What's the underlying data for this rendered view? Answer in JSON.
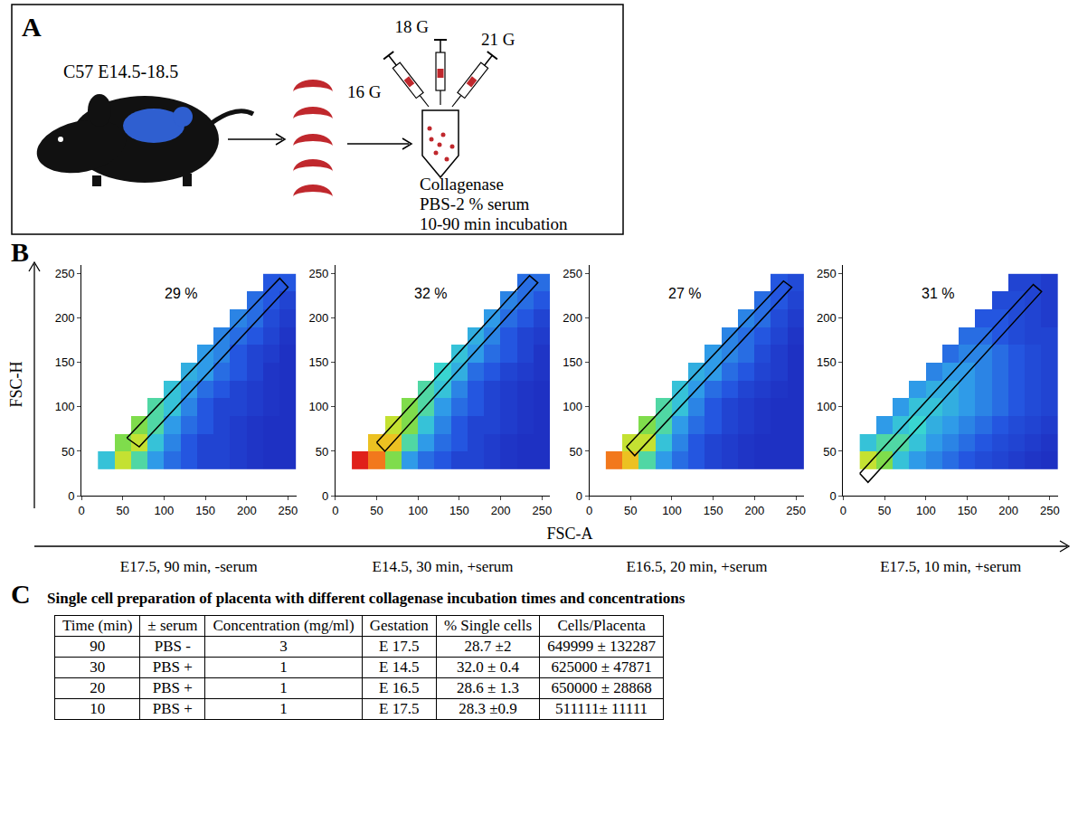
{
  "panel_a": {
    "letter": "A",
    "strain_stage": "C57 E14.5-18.5",
    "needles": {
      "left": "16 G",
      "middle": "18 G",
      "right": "21 G"
    },
    "reagents": [
      "Collagenase",
      "PBS-2 % serum",
      "10-90 min incubation"
    ]
  },
  "panel_b": {
    "letter": "B",
    "y_label": "FSC-H",
    "x_label": "FSC-A"
  },
  "chart_data": [
    {
      "type": "heatmap",
      "subtitle": "E17.5, 90 min, -serum",
      "x": [
        30,
        50,
        70,
        90,
        110,
        130,
        150,
        170,
        190,
        210,
        230,
        250
      ],
      "y": [
        40,
        60,
        80,
        100,
        120,
        140,
        160,
        180,
        200,
        220,
        240
      ],
      "z": [
        [
          4,
          7,
          5,
          3,
          2,
          1.5,
          1,
          1,
          0.8,
          0.6,
          0.5,
          0.5
        ],
        [
          null,
          6,
          7,
          4,
          2.5,
          1.5,
          1,
          1,
          0.8,
          0.6,
          0.5,
          0.5
        ],
        [
          null,
          null,
          6,
          5,
          3,
          2,
          1.5,
          1,
          0.8,
          0.6,
          0.5,
          0.5
        ],
        [
          null,
          null,
          null,
          5,
          4,
          2.5,
          1.5,
          1,
          1,
          0.8,
          0.6,
          0.5
        ],
        [
          null,
          null,
          null,
          null,
          4,
          3,
          2,
          1.5,
          1,
          0.8,
          0.6,
          0.5
        ],
        [
          null,
          null,
          null,
          null,
          null,
          3.5,
          3,
          2,
          1.5,
          1,
          0.6,
          0.5
        ],
        [
          null,
          null,
          null,
          null,
          null,
          null,
          3,
          2.5,
          1.5,
          1,
          0.8,
          0.5
        ],
        [
          null,
          null,
          null,
          null,
          null,
          null,
          null,
          2.5,
          2,
          1.5,
          1,
          0.6
        ],
        [
          null,
          null,
          null,
          null,
          null,
          null,
          null,
          null,
          2.5,
          2,
          1.2,
          0.8
        ],
        [
          null,
          null,
          null,
          null,
          null,
          null,
          null,
          null,
          null,
          2,
          1.5,
          1
        ],
        [
          null,
          null,
          null,
          null,
          null,
          null,
          null,
          null,
          null,
          null,
          1.5,
          1.5
        ]
      ],
      "zlim": [
        0,
        10
      ],
      "xlim": [
        0,
        260
      ],
      "ylim": [
        0,
        260
      ],
      "xticks": [
        0,
        50,
        100,
        150,
        200,
        250
      ],
      "yticks": [
        0,
        50,
        100,
        150,
        200,
        250
      ],
      "gate": [
        [
          55,
          65
        ],
        [
          70,
          55
        ],
        [
          250,
          235
        ],
        [
          240,
          245
        ]
      ],
      "gate_label": "29 %",
      "gate_label_at": [
        120,
        228
      ]
    },
    {
      "type": "heatmap",
      "subtitle": "E14.5, 30 min, +serum",
      "x": [
        30,
        50,
        70,
        90,
        110,
        130,
        150,
        170,
        190,
        210,
        230,
        250
      ],
      "y": [
        40,
        60,
        80,
        100,
        120,
        140,
        160,
        180,
        200,
        220,
        240
      ],
      "z": [
        [
          10,
          9,
          6,
          3,
          2,
          1.5,
          1,
          1,
          0.8,
          0.6,
          0.5,
          0.5
        ],
        [
          null,
          8,
          8,
          5,
          3,
          2,
          1.5,
          1,
          0.8,
          0.6,
          0.5,
          0.5
        ],
        [
          null,
          null,
          7,
          6,
          4,
          2.5,
          1.5,
          1,
          1,
          0.8,
          0.6,
          0.5
        ],
        [
          null,
          null,
          null,
          6,
          5,
          3,
          2,
          1.5,
          1,
          0.8,
          0.6,
          0.5
        ],
        [
          null,
          null,
          null,
          null,
          5,
          4,
          2.5,
          1.5,
          1,
          0.8,
          0.6,
          0.5
        ],
        [
          null,
          null,
          null,
          null,
          null,
          4.5,
          3.5,
          2,
          1.5,
          1,
          0.8,
          0.6
        ],
        [
          null,
          null,
          null,
          null,
          null,
          null,
          4,
          3,
          2,
          1.5,
          1,
          0.6
        ],
        [
          null,
          null,
          null,
          null,
          null,
          null,
          null,
          3.5,
          2.5,
          1.5,
          1,
          0.8
        ],
        [
          null,
          null,
          null,
          null,
          null,
          null,
          null,
          null,
          3,
          2,
          1.5,
          1
        ],
        [
          null,
          null,
          null,
          null,
          null,
          null,
          null,
          null,
          null,
          2.5,
          2,
          1.5
        ],
        [
          null,
          null,
          null,
          null,
          null,
          null,
          null,
          null,
          null,
          null,
          2,
          2
        ]
      ],
      "zlim": [
        0,
        10
      ],
      "xlim": [
        0,
        260
      ],
      "ylim": [
        0,
        260
      ],
      "xticks": [
        0,
        50,
        100,
        150,
        200,
        250
      ],
      "yticks": [
        0,
        50,
        100,
        150,
        200,
        250
      ],
      "gate": [
        [
          50,
          60
        ],
        [
          60,
          50
        ],
        [
          245,
          240
        ],
        [
          235,
          248
        ]
      ],
      "gate_label": "32 %",
      "gate_label_at": [
        115,
        228
      ]
    },
    {
      "type": "heatmap",
      "subtitle": "E16.5, 20 min, +serum",
      "x": [
        30,
        50,
        70,
        90,
        110,
        130,
        150,
        170,
        190,
        210,
        230,
        250
      ],
      "y": [
        40,
        60,
        80,
        100,
        120,
        140,
        160,
        180,
        200,
        220,
        240
      ],
      "z": [
        [
          9,
          8,
          5,
          3,
          2,
          1.5,
          1,
          0.8,
          0.6,
          0.5,
          0.5,
          0.5
        ],
        [
          null,
          7,
          7,
          4,
          2.5,
          1.5,
          1,
          0.8,
          0.6,
          0.5,
          0.5,
          0.5
        ],
        [
          null,
          null,
          6,
          5,
          3,
          2,
          1.5,
          1,
          0.8,
          0.6,
          0.5,
          0.5
        ],
        [
          null,
          null,
          null,
          5,
          4,
          2.5,
          1.5,
          1,
          0.8,
          0.6,
          0.5,
          0.5
        ],
        [
          null,
          null,
          null,
          null,
          4,
          3,
          2,
          1.5,
          1,
          0.8,
          0.6,
          0.5
        ],
        [
          null,
          null,
          null,
          null,
          null,
          3.5,
          3,
          2,
          1.5,
          1,
          0.8,
          0.5
        ],
        [
          null,
          null,
          null,
          null,
          null,
          null,
          3,
          2.5,
          2,
          1.2,
          0.8,
          0.5
        ],
        [
          null,
          null,
          null,
          null,
          null,
          null,
          null,
          2.5,
          2,
          1.5,
          1,
          0.6
        ],
        [
          null,
          null,
          null,
          null,
          null,
          null,
          null,
          null,
          2.5,
          2,
          1.2,
          0.8
        ],
        [
          null,
          null,
          null,
          null,
          null,
          null,
          null,
          null,
          null,
          2,
          1.5,
          1
        ],
        [
          null,
          null,
          null,
          null,
          null,
          null,
          null,
          null,
          null,
          null,
          1.5,
          1.2
        ]
      ],
      "zlim": [
        0,
        10
      ],
      "xlim": [
        0,
        260
      ],
      "ylim": [
        0,
        260
      ],
      "xticks": [
        0,
        50,
        100,
        150,
        200,
        250
      ],
      "yticks": [
        0,
        50,
        100,
        150,
        200,
        250
      ],
      "gate": [
        [
          45,
          55
        ],
        [
          55,
          45
        ],
        [
          245,
          235
        ],
        [
          235,
          242
        ]
      ],
      "gate_label": "27 %",
      "gate_label_at": [
        115,
        228
      ]
    },
    {
      "type": "heatmap",
      "subtitle": "E17.5, 10 min, +serum",
      "x": [
        30,
        50,
        70,
        90,
        110,
        130,
        150,
        170,
        190,
        210,
        230,
        250
      ],
      "y": [
        40,
        60,
        80,
        100,
        120,
        140,
        160,
        180,
        200,
        220,
        240
      ],
      "z": [
        [
          7,
          6,
          4,
          3,
          2.5,
          2,
          1.5,
          1.2,
          1,
          0.8,
          0.6,
          0.5
        ],
        [
          4,
          5,
          5,
          4,
          3,
          2.5,
          2,
          1.5,
          1.2,
          1,
          0.8,
          0.6
        ],
        [
          null,
          3,
          4,
          4.5,
          3.5,
          3,
          2.5,
          2,
          1.5,
          1.2,
          1,
          0.8
        ],
        [
          null,
          null,
          3,
          4,
          4,
          3.5,
          3,
          2.5,
          2,
          1.5,
          1.2,
          1
        ],
        [
          null,
          null,
          null,
          3,
          3.5,
          3.5,
          3,
          2.5,
          2,
          1.5,
          1.2,
          1
        ],
        [
          null,
          null,
          null,
          null,
          2.5,
          3,
          3,
          2.5,
          2,
          1.5,
          1.2,
          1
        ],
        [
          null,
          null,
          null,
          null,
          null,
          2,
          2.5,
          2.5,
          2,
          1.5,
          1.2,
          1
        ],
        [
          null,
          null,
          null,
          null,
          null,
          null,
          2,
          2,
          1.5,
          1.2,
          1,
          1
        ],
        [
          null,
          null,
          null,
          null,
          null,
          null,
          null,
          1.5,
          1.5,
          1.2,
          1,
          0.8
        ],
        [
          null,
          null,
          null,
          null,
          null,
          null,
          null,
          null,
          1.2,
          1.2,
          1,
          0.8
        ],
        [
          null,
          null,
          null,
          null,
          null,
          null,
          null,
          null,
          null,
          1,
          1,
          0.8
        ]
      ],
      "zlim": [
        0,
        10
      ],
      "xlim": [
        0,
        260
      ],
      "ylim": [
        0,
        260
      ],
      "xticks": [
        0,
        50,
        100,
        150,
        200,
        250
      ],
      "yticks": [
        0,
        50,
        100,
        150,
        200,
        250
      ],
      "gate": [
        [
          20,
          25
        ],
        [
          30,
          15
        ],
        [
          240,
          230
        ],
        [
          230,
          238
        ]
      ],
      "gate_label": "31 %",
      "gate_label_at": [
        115,
        228
      ]
    }
  ],
  "panel_c": {
    "letter": "C",
    "table": {
      "title": "Single cell preparation of placenta with different collagenase incubation times and concentrations",
      "header": [
        "Time (min)",
        "± serum",
        "Concentration (mg/ml)",
        "Gestation",
        "% Single cells",
        "Cells/Placenta"
      ],
      "rows": [
        [
          "90",
          "PBS -",
          "3",
          "E 17.5",
          "28.7 ±2",
          "649999 ± 132287"
        ],
        [
          "30",
          "PBS +",
          "1",
          "E 14.5",
          "32.0 ± 0.4",
          "625000 ± 47871"
        ],
        [
          "20",
          "PBS +",
          "1",
          "E 16.5",
          "28.6 ± 1.3",
          "650000 ± 28868"
        ],
        [
          "10",
          "PBS +",
          "1",
          "E 17.5",
          "28.3 ±0.9",
          "511111± 11111"
        ]
      ]
    }
  }
}
